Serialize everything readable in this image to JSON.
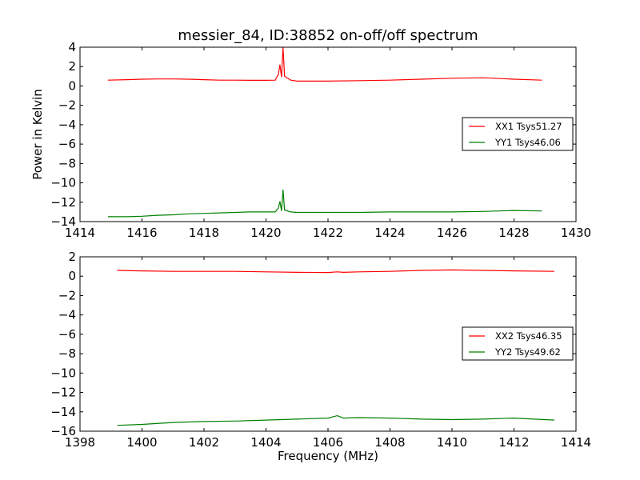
{
  "figure": {
    "title": "messier_84, ID:38852 on-off/off spectrum",
    "ylabel": "Power in Kelvin",
    "xlabel": "Frequency (MHz)"
  },
  "chart_data": [
    {
      "type": "line",
      "title": "messier_84, ID:38852 on-off/off spectrum",
      "ylabel": "Power in Kelvin",
      "xlabel": "",
      "xlim": [
        1414,
        1430
      ],
      "ylim": [
        -14,
        4
      ],
      "xticks": [
        1414,
        1416,
        1418,
        1420,
        1422,
        1424,
        1426,
        1428,
        1430
      ],
      "yticks": [
        4,
        2,
        0,
        -2,
        -4,
        -6,
        -8,
        -10,
        -12,
        -14
      ],
      "grid": false,
      "legend_position": "right",
      "series": [
        {
          "name": "XX1 Tsys51.27",
          "color": "#ff0000",
          "x": [
            1414.9,
            1415.5,
            1416,
            1416.5,
            1417,
            1417.5,
            1418,
            1418.5,
            1419,
            1419.5,
            1420,
            1420.3,
            1420.4,
            1420.45,
            1420.5,
            1420.55,
            1420.6,
            1420.8,
            1421,
            1422,
            1423,
            1424,
            1425,
            1426,
            1427,
            1428,
            1428.9
          ],
          "values": [
            0.6,
            0.65,
            0.7,
            0.72,
            0.72,
            0.7,
            0.65,
            0.6,
            0.6,
            0.58,
            0.58,
            0.6,
            1.2,
            2.2,
            0.9,
            4.0,
            1.0,
            0.6,
            0.5,
            0.5,
            0.55,
            0.6,
            0.7,
            0.8,
            0.85,
            0.7,
            0.6
          ]
        },
        {
          "name": "YY1 Tsys46.06",
          "color": "#008000",
          "x": [
            1414.9,
            1415.5,
            1416,
            1416.5,
            1417,
            1417.5,
            1418,
            1418.5,
            1419,
            1419.5,
            1420,
            1420.3,
            1420.4,
            1420.45,
            1420.5,
            1420.55,
            1420.6,
            1420.8,
            1421,
            1422,
            1423,
            1424,
            1425,
            1426,
            1427,
            1428,
            1428.9
          ],
          "values": [
            -13.5,
            -13.5,
            -13.45,
            -13.35,
            -13.3,
            -13.2,
            -13.15,
            -13.1,
            -13.05,
            -13.0,
            -13.0,
            -13.0,
            -12.6,
            -11.9,
            -12.9,
            -10.7,
            -12.8,
            -13.0,
            -13.05,
            -13.05,
            -13.05,
            -13.0,
            -13.0,
            -13.0,
            -12.95,
            -12.85,
            -12.9
          ]
        }
      ]
    },
    {
      "type": "line",
      "title": "",
      "ylabel": "",
      "xlabel": "Frequency (MHz)",
      "xlim": [
        1398,
        1414
      ],
      "ylim": [
        -16,
        2
      ],
      "xticks": [
        1398,
        1400,
        1402,
        1404,
        1406,
        1408,
        1410,
        1412,
        1414
      ],
      "yticks": [
        2,
        0,
        -2,
        -4,
        -6,
        -8,
        -10,
        -12,
        -14,
        -16
      ],
      "grid": false,
      "legend_position": "right",
      "series": [
        {
          "name": "XX2 Tsys46.35",
          "color": "#ff0000",
          "x": [
            1399.2,
            1400,
            1401,
            1402,
            1403,
            1404,
            1405,
            1406,
            1406.3,
            1406.5,
            1407,
            1408,
            1409,
            1410,
            1411,
            1412,
            1413.3
          ],
          "values": [
            0.6,
            0.55,
            0.5,
            0.5,
            0.5,
            0.45,
            0.4,
            0.38,
            0.45,
            0.4,
            0.45,
            0.5,
            0.6,
            0.65,
            0.6,
            0.55,
            0.5
          ]
        },
        {
          "name": "YY2 Tsys49.62",
          "color": "#008000",
          "x": [
            1399.2,
            1400,
            1401,
            1402,
            1403,
            1404,
            1405,
            1406,
            1406.3,
            1406.5,
            1407,
            1408,
            1409,
            1410,
            1411,
            1412,
            1413.3
          ],
          "values": [
            -15.4,
            -15.3,
            -15.1,
            -15.0,
            -14.95,
            -14.85,
            -14.75,
            -14.65,
            -14.4,
            -14.65,
            -14.6,
            -14.65,
            -14.75,
            -14.8,
            -14.75,
            -14.65,
            -14.85
          ]
        }
      ]
    }
  ]
}
